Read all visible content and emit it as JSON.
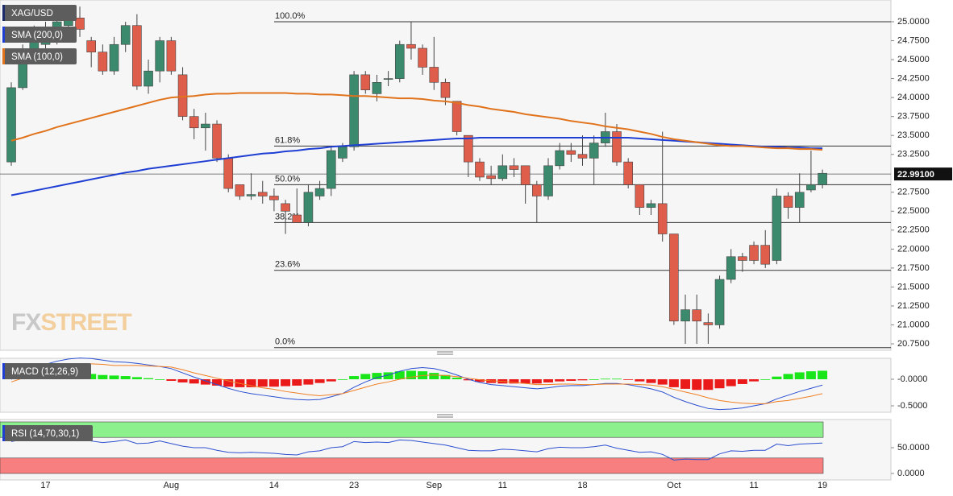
{
  "watermark": [
    "FX",
    "STREET"
  ],
  "chart_data": [
    {
      "type": "candlestick",
      "name": "XAG/USD",
      "categories": [
        null,
        null,
        null,
        "17",
        null,
        null,
        null,
        null,
        null,
        null,
        null,
        null,
        null,
        null,
        "Aug",
        null,
        null,
        null,
        null,
        null,
        null,
        null,
        null,
        "14",
        null,
        null,
        null,
        null,
        null,
        null,
        "23",
        null,
        null,
        null,
        null,
        null,
        null,
        "Sep",
        null,
        null,
        null,
        null,
        null,
        "11",
        null,
        null,
        null,
        null,
        null,
        null,
        "18",
        null,
        null,
        null,
        null,
        null,
        null,
        null,
        "Oct",
        null,
        null,
        null,
        null,
        null,
        null,
        "11",
        null,
        null,
        null,
        null,
        null,
        "19"
      ],
      "open": [
        23.15,
        24.13,
        24.6,
        24.7,
        24.85,
        24.95,
        25.05,
        24.75,
        24.6,
        24.35,
        24.7,
        24.95,
        24.15,
        24.35,
        24.75,
        24.3,
        23.75,
        23.6,
        23.65,
        23.2,
        22.85,
        22.7,
        22.75,
        22.7,
        22.6,
        22.45,
        22.35,
        22.7,
        22.8,
        23.2,
        23.35,
        24.3,
        24.05,
        24.25,
        24.25,
        24.7,
        24.65,
        24.4,
        24.2,
        23.95,
        23.5,
        23.15,
        22.97,
        22.93,
        23.1,
        23.1,
        22.85,
        22.7,
        23.1,
        23.3,
        23.25,
        23.2,
        23.4,
        23.55,
        23.15,
        22.85,
        22.55,
        22.6,
        22.2,
        21.05,
        21.2,
        21.03,
        21.0,
        21.6,
        21.9,
        22.05,
        22.05,
        21.85,
        22.7,
        22.55,
        22.78,
        22.85
      ],
      "high": [
        24.2,
        24.7,
        24.95,
        25.0,
        25.1,
        25.2,
        25.2,
        24.8,
        24.7,
        24.8,
        25.0,
        25.1,
        24.5,
        24.8,
        24.8,
        24.4,
        23.85,
        23.8,
        23.7,
        23.25,
        22.85,
        23.0,
        22.9,
        22.8,
        22.65,
        22.8,
        22.85,
        22.9,
        23.35,
        23.4,
        24.35,
        24.35,
        24.3,
        24.35,
        24.75,
        25.0,
        24.7,
        24.8,
        24.25,
        23.95,
        23.5,
        23.2,
        23.1,
        23.25,
        23.2,
        23.1,
        22.9,
        23.2,
        23.4,
        23.4,
        23.5,
        23.5,
        23.8,
        23.65,
        23.2,
        22.85,
        22.65,
        23.55,
        22.2,
        21.4,
        21.4,
        21.15,
        21.65,
        22.0,
        21.95,
        22.1,
        22.25,
        22.8,
        22.75,
        23.0,
        23.3,
        23.05
      ],
      "low": [
        23.1,
        24.1,
        24.5,
        24.6,
        24.7,
        24.85,
        24.8,
        24.4,
        24.3,
        24.3,
        24.6,
        24.1,
        24.05,
        24.2,
        24.3,
        23.7,
        23.45,
        23.3,
        23.15,
        22.75,
        22.65,
        22.65,
        22.6,
        22.5,
        22.2,
        22.35,
        22.3,
        22.65,
        22.7,
        23.15,
        23.3,
        24.05,
        23.95,
        24.15,
        24.2,
        24.5,
        24.3,
        24.1,
        23.9,
        23.5,
        22.95,
        22.9,
        22.85,
        22.9,
        22.95,
        22.6,
        22.35,
        22.65,
        23.05,
        23.15,
        23.1,
        22.85,
        23.35,
        23.1,
        22.8,
        22.45,
        22.45,
        22.1,
        21.0,
        20.75,
        20.75,
        20.75,
        20.95,
        21.55,
        21.7,
        21.8,
        21.75,
        21.8,
        22.4,
        22.35,
        22.75,
        22.8
      ],
      "close": [
        24.13,
        24.6,
        24.75,
        24.9,
        25.0,
        25.05,
        24.9,
        24.6,
        24.35,
        24.7,
        24.95,
        24.15,
        24.35,
        24.75,
        24.35,
        23.75,
        23.6,
        23.65,
        23.2,
        22.8,
        22.7,
        22.72,
        22.7,
        22.65,
        22.5,
        22.35,
        22.75,
        22.8,
        23.3,
        23.35,
        24.3,
        24.1,
        24.2,
        24.25,
        24.7,
        24.65,
        24.4,
        24.2,
        24.0,
        23.55,
        23.15,
        22.95,
        22.93,
        23.1,
        23.05,
        22.85,
        22.7,
        23.1,
        23.3,
        23.25,
        23.2,
        23.4,
        23.55,
        23.15,
        22.85,
        22.55,
        22.6,
        22.2,
        21.05,
        21.2,
        21.05,
        21.0,
        21.6,
        21.9,
        21.85,
        21.85,
        21.8,
        22.7,
        22.55,
        22.75,
        22.85,
        23.0
      ],
      "up_color": "#3b8a6d",
      "down_color": "#df5d4b",
      "series": [
        {
          "name": "SMA (200,0)",
          "color": "#1f3fd4",
          "values": [
            22.71,
            22.74,
            22.77,
            22.8,
            22.83,
            22.86,
            22.89,
            22.92,
            22.95,
            22.98,
            23.01,
            23.03,
            23.06,
            23.08,
            23.1,
            23.12,
            23.14,
            23.16,
            23.18,
            23.2,
            23.22,
            23.24,
            23.26,
            23.27,
            23.29,
            23.3,
            23.32,
            23.33,
            23.35,
            23.36,
            23.37,
            23.38,
            23.39,
            23.4,
            23.41,
            23.42,
            23.43,
            23.44,
            23.45,
            23.46,
            23.46,
            23.47,
            23.47,
            23.47,
            23.47,
            23.47,
            23.47,
            23.47,
            23.47,
            23.47,
            23.47,
            23.47,
            23.47,
            23.47,
            23.47,
            23.46,
            23.45,
            23.44,
            23.43,
            23.42,
            23.41,
            23.4,
            23.39,
            23.38,
            23.37,
            23.36,
            23.35,
            23.35,
            23.34,
            23.34,
            23.33,
            23.33
          ]
        },
        {
          "name": "SMA (100,0)",
          "color": "#e0731c",
          "values": [
            23.43,
            23.47,
            23.52,
            23.56,
            23.61,
            23.65,
            23.69,
            23.73,
            23.77,
            23.81,
            23.85,
            23.89,
            23.93,
            23.97,
            24.0,
            24.01,
            24.02,
            24.04,
            24.05,
            24.05,
            24.06,
            24.06,
            24.06,
            24.06,
            24.06,
            24.05,
            24.05,
            24.04,
            24.04,
            24.03,
            24.02,
            24.02,
            24.01,
            24.0,
            23.99,
            23.99,
            23.98,
            23.96,
            23.95,
            23.93,
            23.9,
            23.88,
            23.85,
            23.83,
            23.81,
            23.78,
            23.76,
            23.74,
            23.72,
            23.69,
            23.67,
            23.65,
            23.62,
            23.6,
            23.58,
            23.55,
            23.52,
            23.48,
            23.45,
            23.43,
            23.41,
            23.39,
            23.37,
            23.36,
            23.36,
            23.35,
            23.34,
            23.33,
            23.33,
            23.32,
            23.32,
            23.31
          ]
        }
      ],
      "levels": [
        {
          "value": 25.0,
          "label": "100.0%"
        },
        {
          "value": 23.36,
          "label": "61.8%"
        },
        {
          "value": 22.85,
          "label": "50.0%"
        },
        {
          "value": 22.35,
          "label": "38.2%"
        },
        {
          "value": 21.72,
          "label": "23.6%"
        },
        {
          "value": 20.7,
          "label": "0.0%"
        }
      ],
      "last_price": {
        "value": 22.991,
        "label": "22.99100"
      },
      "ylim": [
        20.665,
        25.287
      ],
      "yticks": [
        {
          "value": 25.0,
          "label": "25.0000"
        },
        {
          "value": 24.75,
          "label": "24.7500"
        },
        {
          "value": 24.5,
          "label": "24.5000"
        },
        {
          "value": 24.25,
          "label": "24.2500"
        },
        {
          "value": 24.0,
          "label": "24.0000"
        },
        {
          "value": 23.75,
          "label": "23.7500"
        },
        {
          "value": 23.5,
          "label": "23.5000"
        },
        {
          "value": 23.25,
          "label": "23.2500"
        },
        {
          "value": 22.75,
          "label": "22.7500"
        },
        {
          "value": 22.5,
          "label": "22.5000"
        },
        {
          "value": 22.25,
          "label": "22.2500"
        },
        {
          "value": 22.0,
          "label": "22.0000"
        },
        {
          "value": 21.75,
          "label": "21.7500"
        },
        {
          "value": 21.5,
          "label": "21.5000"
        },
        {
          "value": 21.25,
          "label": "21.2500"
        },
        {
          "value": 21.0,
          "label": "21.0000"
        },
        {
          "value": 20.75,
          "label": "20.7500"
        }
      ]
    },
    {
      "type": "macd",
      "name": "MACD (12,26,9)",
      "histogram": [
        0.05,
        0.08,
        0.1,
        0.12,
        0.13,
        0.12,
        0.11,
        0.1,
        0.08,
        0.07,
        0.06,
        0.04,
        0.02,
        0.0,
        -0.03,
        -0.06,
        -0.08,
        -0.1,
        -0.12,
        -0.14,
        -0.15,
        -0.15,
        -0.14,
        -0.14,
        -0.13,
        -0.12,
        -0.1,
        -0.07,
        -0.04,
        0.0,
        0.06,
        0.1,
        0.12,
        0.13,
        0.15,
        0.16,
        0.15,
        0.12,
        0.08,
        0.03,
        -0.02,
        -0.05,
        -0.07,
        -0.08,
        -0.08,
        -0.08,
        -0.08,
        -0.06,
        -0.04,
        -0.03,
        -0.02,
        0.0,
        0.01,
        0.01,
        -0.01,
        -0.04,
        -0.07,
        -0.1,
        -0.15,
        -0.18,
        -0.2,
        -0.2,
        -0.17,
        -0.13,
        -0.09,
        -0.04,
        0.0,
        0.05,
        0.1,
        0.13,
        0.15,
        0.16
      ],
      "macd_line": [
        0.0,
        0.1,
        0.2,
        0.28,
        0.34,
        0.38,
        0.4,
        0.39,
        0.36,
        0.33,
        0.32,
        0.3,
        0.27,
        0.24,
        0.2,
        0.12,
        0.04,
        -0.03,
        -0.1,
        -0.17,
        -0.23,
        -0.27,
        -0.3,
        -0.33,
        -0.36,
        -0.38,
        -0.39,
        -0.38,
        -0.33,
        -0.27,
        -0.15,
        -0.05,
        0.03,
        0.08,
        0.15,
        0.2,
        0.22,
        0.2,
        0.15,
        0.08,
        0.0,
        -0.06,
        -0.1,
        -0.12,
        -0.14,
        -0.16,
        -0.18,
        -0.16,
        -0.13,
        -0.12,
        -0.12,
        -0.1,
        -0.08,
        -0.08,
        -0.1,
        -0.14,
        -0.18,
        -0.24,
        -0.34,
        -0.42,
        -0.49,
        -0.55,
        -0.57,
        -0.56,
        -0.54,
        -0.5,
        -0.46,
        -0.37,
        -0.3,
        -0.23,
        -0.17,
        -0.11
      ],
      "signal_line": [
        -0.05,
        0.02,
        0.1,
        0.16,
        0.21,
        0.26,
        0.29,
        0.29,
        0.28,
        0.26,
        0.26,
        0.26,
        0.25,
        0.24,
        0.23,
        0.18,
        0.12,
        0.07,
        0.02,
        -0.03,
        -0.08,
        -0.12,
        -0.16,
        -0.19,
        -0.23,
        -0.26,
        -0.29,
        -0.31,
        -0.29,
        -0.27,
        -0.21,
        -0.15,
        -0.09,
        -0.05,
        0.0,
        0.04,
        0.07,
        0.08,
        0.07,
        0.05,
        0.02,
        -0.01,
        -0.03,
        -0.04,
        -0.06,
        -0.08,
        -0.1,
        -0.1,
        -0.09,
        -0.09,
        -0.1,
        -0.1,
        -0.09,
        -0.09,
        -0.09,
        -0.1,
        -0.11,
        -0.14,
        -0.19,
        -0.24,
        -0.29,
        -0.35,
        -0.4,
        -0.43,
        -0.45,
        -0.46,
        -0.46,
        -0.42,
        -0.4,
        -0.36,
        -0.32,
        -0.27
      ],
      "up_color": "#19e619",
      "down_color": "#ea1a1a",
      "macd_color": "#2a4fd2",
      "signal_color": "#f07f22",
      "ylim": [
        -0.621,
        0.394
      ],
      "yticks": [
        {
          "value": 0,
          "label": "-0.0000"
        },
        {
          "value": -0.5,
          "label": "-0.5000"
        }
      ]
    },
    {
      "type": "rsi",
      "name": "RSI (14,70,30,1)",
      "values": [
        62,
        66,
        67,
        68,
        68,
        69,
        67,
        63,
        60,
        62,
        65,
        58,
        59,
        63,
        58,
        53,
        50,
        50,
        45,
        41,
        40,
        41,
        40,
        39,
        37,
        36,
        42,
        44,
        50,
        52,
        62,
        60,
        61,
        60,
        65,
        64,
        61,
        58,
        55,
        50,
        45,
        44,
        44,
        47,
        46,
        44,
        42,
        48,
        51,
        50,
        50,
        52,
        55,
        49,
        45,
        41,
        42,
        37,
        26,
        28,
        27,
        27,
        38,
        44,
        43,
        45,
        45,
        57,
        54,
        57,
        58,
        59
      ],
      "color": "#2d4fd0",
      "zones": [
        {
          "from": 70,
          "to": 100,
          "color": "#8cf08c"
        },
        {
          "from": 0,
          "to": 30,
          "color": "#f87f7f"
        }
      ],
      "ylim": [
        -12.5,
        104.7
      ],
      "yticks": [
        {
          "value": 50,
          "label": "50.0000"
        },
        {
          "value": 0,
          "label": "0.0000"
        }
      ]
    }
  ]
}
